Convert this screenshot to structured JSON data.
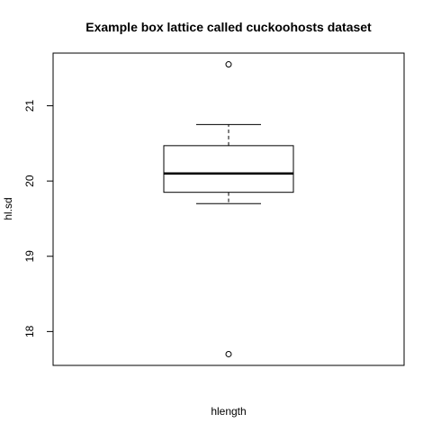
{
  "chart_data": {
    "type": "box",
    "title": "Example box lattice called cuckoohosts dataset",
    "xlabel": "hlength",
    "ylabel": "hl.sd",
    "ylim": [
      17.55,
      21.7
    ],
    "y_ticks": [
      18,
      19,
      20,
      21
    ],
    "y_tick_labels": [
      "18",
      "19",
      "20",
      "21"
    ],
    "box": {
      "lower_whisker": 19.7,
      "q1": 19.85,
      "median": 20.1,
      "q3": 20.47,
      "upper_whisker": 20.75
    },
    "outliers": [
      21.55,
      17.7
    ],
    "grid": false,
    "legend": "none"
  }
}
